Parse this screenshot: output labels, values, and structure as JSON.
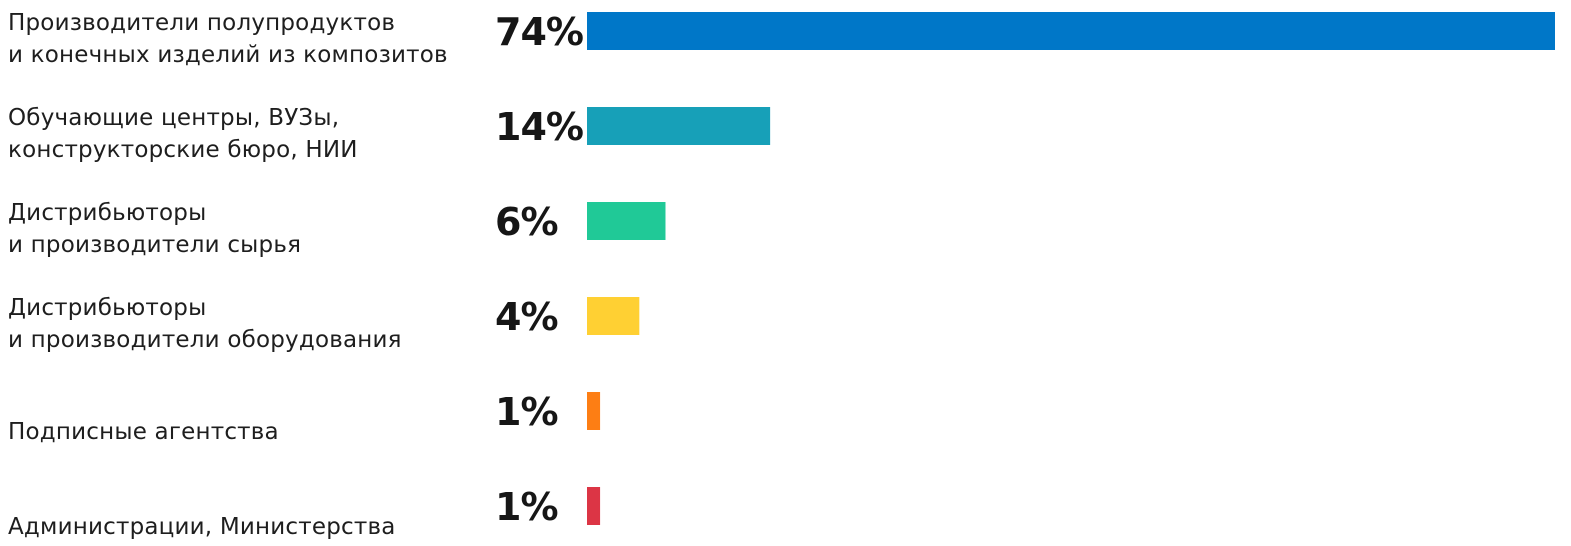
{
  "chart_data": {
    "type": "bar",
    "orientation": "horizontal",
    "categories": [
      [
        "Производители полупродуктов",
        "и конечных изделий из композитов"
      ],
      [
        "Обучающие центры, ВУЗы,",
        "конструкторские бюро, НИИ"
      ],
      [
        "Дистрибьюторы",
        "и производители сырья"
      ],
      [
        "Дистрибьюторы",
        "и производители оборудования"
      ],
      [
        "Подписные агентства"
      ],
      [
        "Администрации, Министерства"
      ]
    ],
    "values": [
      74,
      14,
      6,
      4,
      1,
      1
    ],
    "value_labels": [
      "74%",
      "14%",
      "6%",
      "4%",
      "1%",
      "1%"
    ],
    "colors": [
      "#0077c8",
      "#17a0b8",
      "#20c997",
      "#ffd033",
      "#fd7e14",
      "#dc3545"
    ],
    "title": "",
    "xlabel": "",
    "ylabel": "",
    "grid": false,
    "legend": "none"
  }
}
